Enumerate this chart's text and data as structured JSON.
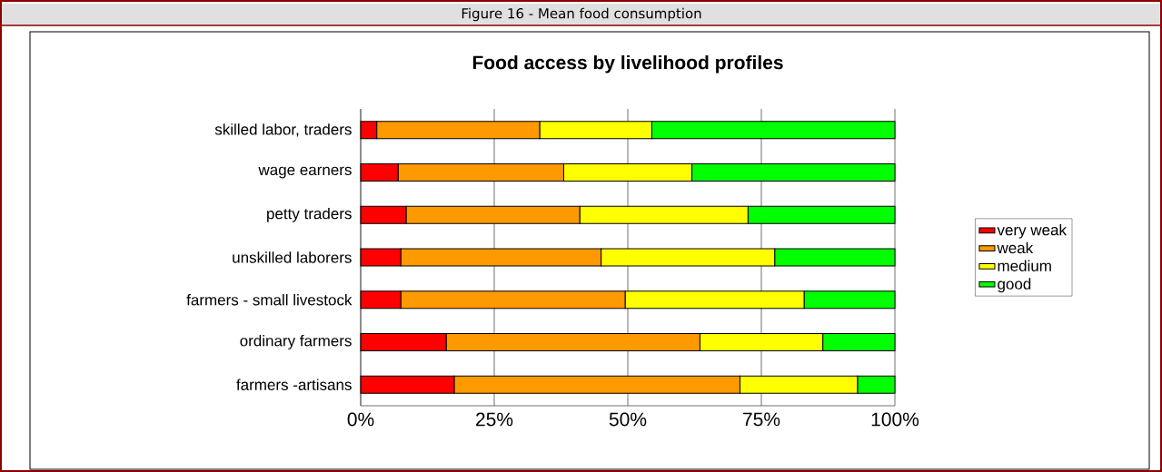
{
  "chart_data": {
    "type": "bar",
    "orientation": "horizontal",
    "stacked": true,
    "title": "Food access by livelihood profiles",
    "annotations": [
      "Figure 16 - Mean food consumption"
    ],
    "categories": [
      "skilled labor, traders",
      "wage earners",
      "petty traders",
      "unskilled laborers",
      "farmers - small livestock",
      "ordinary farmers",
      "farmers -artisans"
    ],
    "series": [
      {
        "name": "very weak",
        "color": "#ff0000",
        "values": [
          3,
          7,
          8.5,
          7.5,
          7.5,
          16,
          17.5
        ]
      },
      {
        "name": "weak",
        "color": "#ff9900",
        "values": [
          30.5,
          31,
          32.5,
          37.5,
          42,
          47.5,
          53.5
        ]
      },
      {
        "name": "medium",
        "color": "#ffff00",
        "values": [
          21,
          24,
          31.5,
          32.5,
          33.5,
          23,
          22
        ]
      },
      {
        "name": "good",
        "color": "#00ff00",
        "values": [
          45.5,
          38,
          27.5,
          22.5,
          17,
          13.5,
          7
        ]
      }
    ],
    "xlim": [
      0,
      100
    ],
    "xticks": [
      {
        "value": 0,
        "label": "0%"
      },
      {
        "value": 25,
        "label": "25%"
      },
      {
        "value": 50,
        "label": "50%"
      },
      {
        "value": 75,
        "label": "75%"
      },
      {
        "value": 100,
        "label": "100%"
      }
    ],
    "grid": "x",
    "legend": "right"
  }
}
